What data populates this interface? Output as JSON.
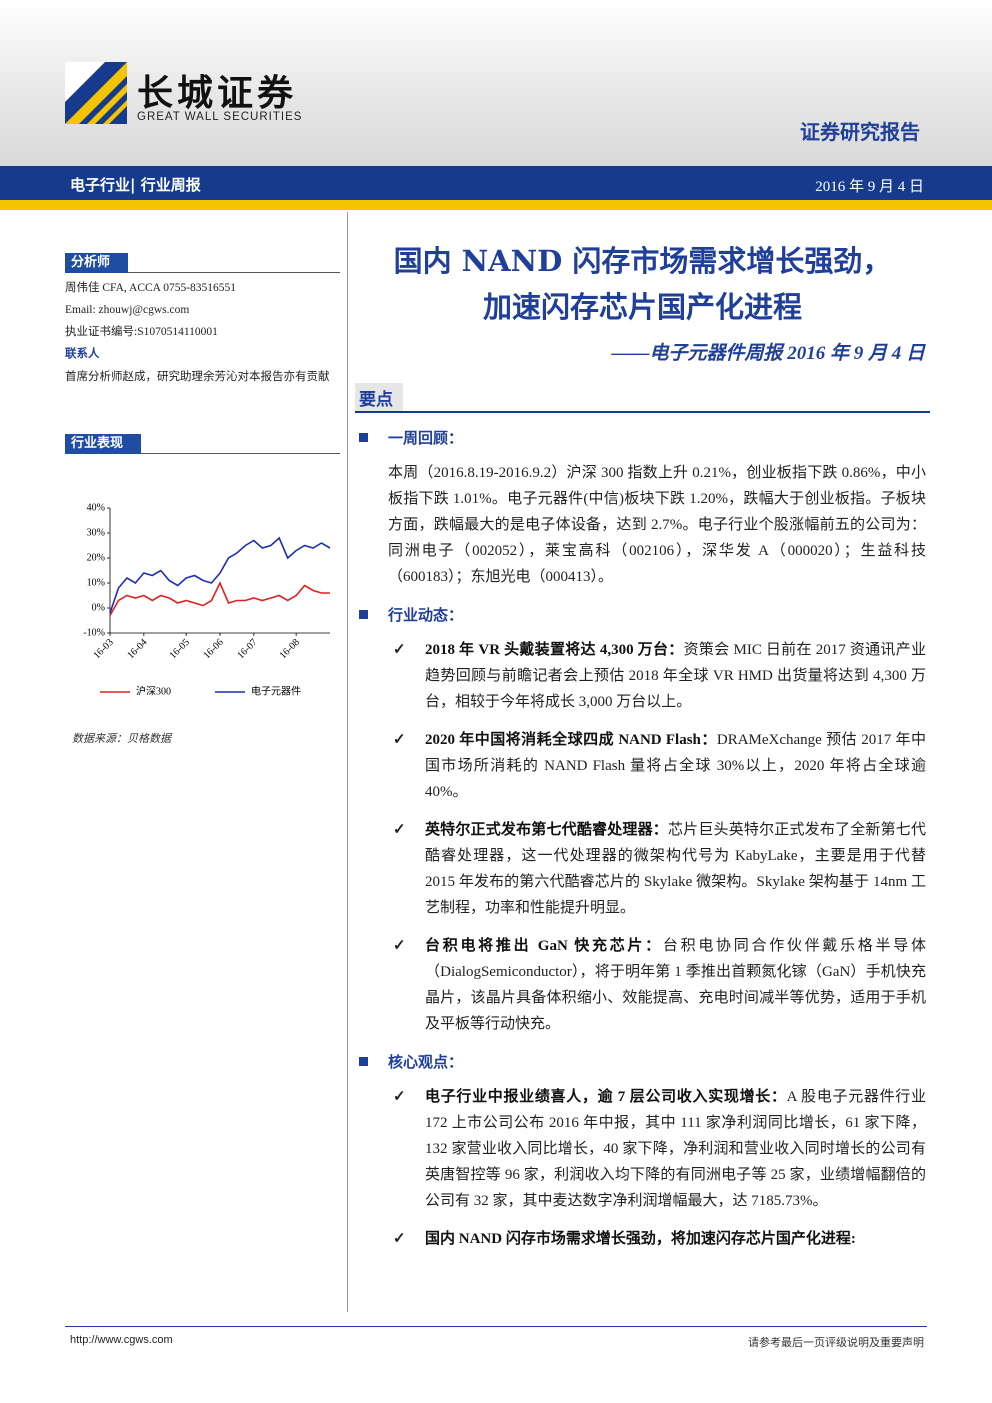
{
  "header": {
    "brand_cn": "长城证券",
    "brand_en": "GREAT WALL SECURITIES",
    "report_type": "证券研究报告"
  },
  "banner": {
    "category": "电子行业| 行业周报",
    "date": "2016 年 9 月 4 日"
  },
  "sidebar": {
    "analyst_heading": "分析师",
    "analyst": [
      "周伟佳 CFA, ACCA 0755-83516551",
      "Email: zhouwj@cgws.com",
      "执业证书编号:S1070514110001"
    ],
    "contact_heading": "联系人",
    "contact": "首席分析师赵成，研究助理余芳沁对本报告亦有贡献",
    "performance_heading": "行业表现",
    "source": "数据来源：贝格数据"
  },
  "chart_data": {
    "type": "line",
    "categories": [
      "16-03",
      null,
      null,
      null,
      "16-04",
      null,
      null,
      null,
      null,
      "16-05",
      null,
      null,
      null,
      "16-06",
      null,
      null,
      null,
      "16-07",
      null,
      null,
      null,
      null,
      "16-08",
      null,
      null,
      null,
      null
    ],
    "series": [
      {
        "name": "沪深300",
        "color": "#e02020",
        "values": [
          -3,
          3,
          5,
          4,
          5,
          3,
          5,
          4,
          2,
          3,
          2,
          1,
          3,
          10,
          2,
          3,
          3,
          4,
          3,
          4,
          5,
          3,
          5,
          9,
          7,
          6,
          6
        ]
      },
      {
        "name": "电子元器件",
        "color": "#1a2fb5",
        "values": [
          -2,
          8,
          12,
          10,
          14,
          13,
          15,
          11,
          9,
          12,
          13,
          11,
          10,
          14,
          20,
          22,
          25,
          27,
          24,
          25,
          28,
          20,
          23,
          25,
          24,
          26,
          24
        ]
      }
    ],
    "ylim": [
      -10,
      40
    ],
    "yticks": [
      {
        "value": -10,
        "label": "-10%"
      },
      {
        "value": 0,
        "label": "0%"
      },
      {
        "value": 10,
        "label": "10%"
      },
      {
        "value": 20,
        "label": "20%"
      },
      {
        "value": 30,
        "label": "30%"
      },
      {
        "value": 40,
        "label": "40%"
      }
    ],
    "legend": "bottom"
  },
  "main": {
    "title": [
      "国内 NAND 闪存市场需求增长强劲，",
      "加速闪存芯片国产化进程"
    ],
    "subtitle": "——电子元器件周报 2016 年 9 月 4 日",
    "key_points": "要点",
    "sections": [
      {
        "heading": "一周回顾：",
        "paragraphs": [
          "本周（2016.8.19-2016.9.2）沪深 300 指数上升 0.21%，创业板指下跌 0.86%，中小板指下跌 1.01%。电子元器件(中信)板块下跌 1.20%，跌幅大于创业板指。子板块方面，跌幅最大的是电子体设备，达到 2.7%。电子行业个股涨幅前五的公司为：同洲电子（002052），莱宝高科（002106），深华发 A（000020）；生益科技（600183）；东旭光电（000413）。"
        ]
      },
      {
        "heading": "行业动态：",
        "items": [
          {
            "lead": "2018 年 VR 头戴装置将达 4,300 万台：",
            "text": "资策会 MIC 日前在 2017 资通讯产业趋势回顾与前瞻记者会上预估 2018 年全球 VR HMD 出货量将达到 4,300 万台，相较于今年将成长 3,000 万台以上。"
          },
          {
            "lead": "2020 年中国将消耗全球四成 NAND Flash：",
            "text": "DRAMeXchange 预估 2017 年中国市场所消耗的 NAND Flash 量将占全球 30%以上，2020 年将占全球逾 40%。"
          },
          {
            "lead": "英特尔正式发布第七代酷睿处理器：",
            "text": "芯片巨头英特尔正式发布了全新第七代酷睿处理器，这一代处理器的微架构代号为 KabyLake，主要是用于代替 2015 年发布的第六代酷睿芯片的 Skylake 微架构。Skylake 架构基于 14nm 工艺制程，功率和性能提升明显。"
          },
          {
            "lead": "台积电将推出 GaN 快充芯片：",
            "text": "台积电协同合作伙伴戴乐格半导体（DialogSemiconductor），将于明年第 1 季推出首颗氮化镓（GaN）手机快充晶片，该晶片具备体积缩小、效能提高、充电时间减半等优势，适用于手机及平板等行动快充。"
          }
        ]
      },
      {
        "heading": "核心观点：",
        "items": [
          {
            "lead": "电子行业中报业绩喜人，逾 7 层公司收入实现增长：",
            "text": "A 股电子元器件行业 172 上市公司公布 2016 年中报，其中 111 家净利润同比增长，61 家下降，132 家营业收入同比增长，40 家下降，净利润和营业收入同时增长的公司有英唐智控等 96 家，利润收入均下降的有同洲电子等 25 家，业绩增幅翻倍的公司有 32 家，其中麦达数字净利润增幅最大，达 7185.73%。"
          },
          {
            "lead": "国内 NAND 闪存市场需求增长强劲，将加速闪存芯片国产化进程:"
          }
        ]
      }
    ]
  },
  "footer": {
    "url": "http://www.cgws.com",
    "note": "请参考最后一页评级说明及重要声明"
  }
}
